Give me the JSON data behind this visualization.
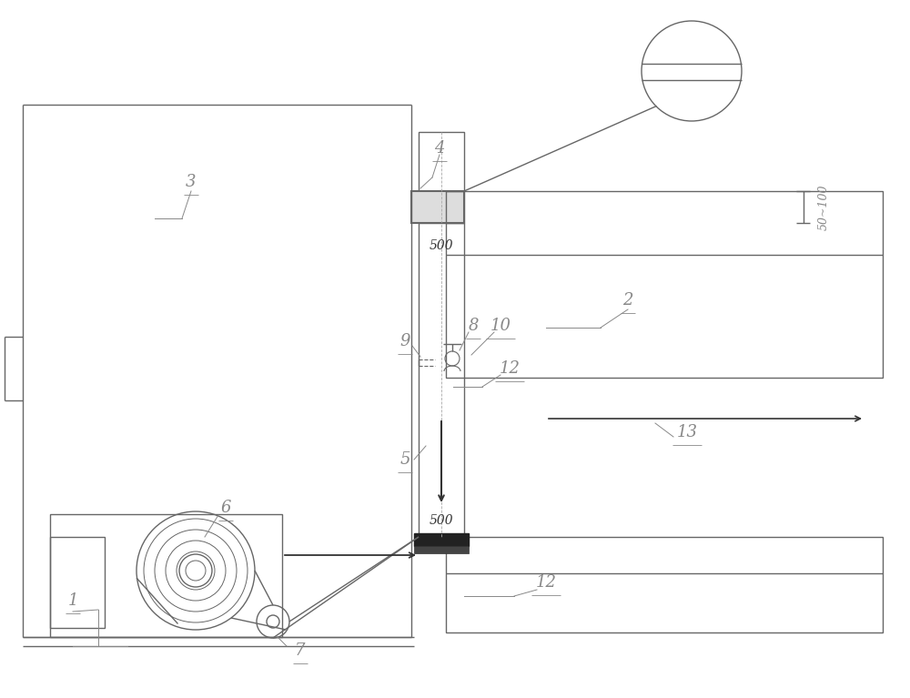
{
  "bg_color": "#ffffff",
  "lc": "#666666",
  "lc_dark": "#333333",
  "label_color": "#888888",
  "figsize": [
    10.0,
    7.67
  ],
  "dpi": 100
}
